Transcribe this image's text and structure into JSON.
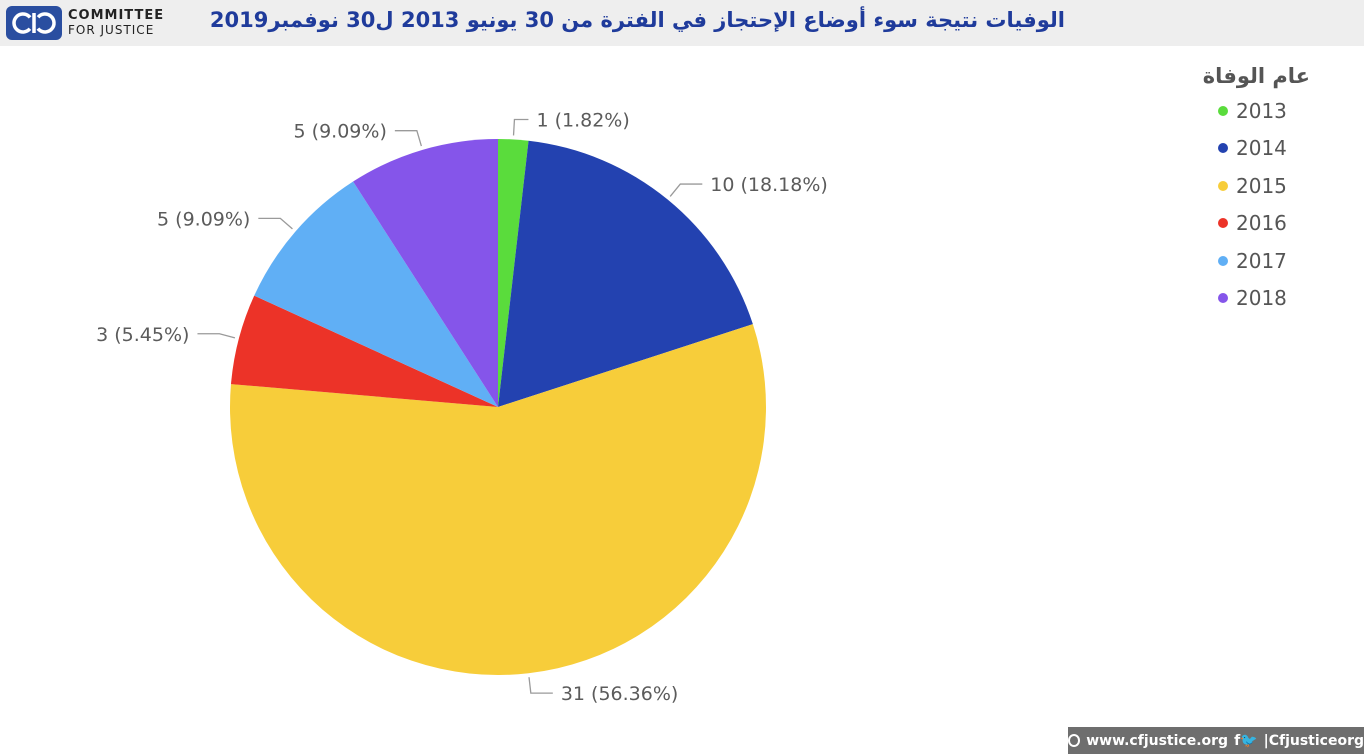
{
  "header": {
    "logo_line1": "COMMITTEE",
    "logo_line2": "FOR JUSTICE",
    "title": "الوفيات نتيجة سوء أوضاع الإحتجاز في الفترة من 30 يونيو 2013 ل30 نوفمبر2019"
  },
  "legend": {
    "title": "عام الوفاة"
  },
  "chart_data": {
    "type": "pie",
    "categories": [
      "2013",
      "2014",
      "2015",
      "2016",
      "2017",
      "2018"
    ],
    "values": [
      1,
      10,
      31,
      3,
      5,
      5
    ],
    "data_labels": [
      "1 (1.82%)",
      "10 (18.18%)",
      "31 (56.36%)",
      "3 (5.45%)",
      "5 (9.09%)",
      "5 (9.09%)"
    ],
    "colors": [
      "#5adc3c",
      "#2342b0",
      "#f7cd3a",
      "#ec3328",
      "#60aff5",
      "#8555ea"
    ],
    "legend_position": "top-right",
    "legend_title": "عام الوفاة"
  },
  "footer": {
    "website": "www.cfjustice.org",
    "social_icons": "f🐦",
    "handle": "|Cfjusticeorg"
  }
}
